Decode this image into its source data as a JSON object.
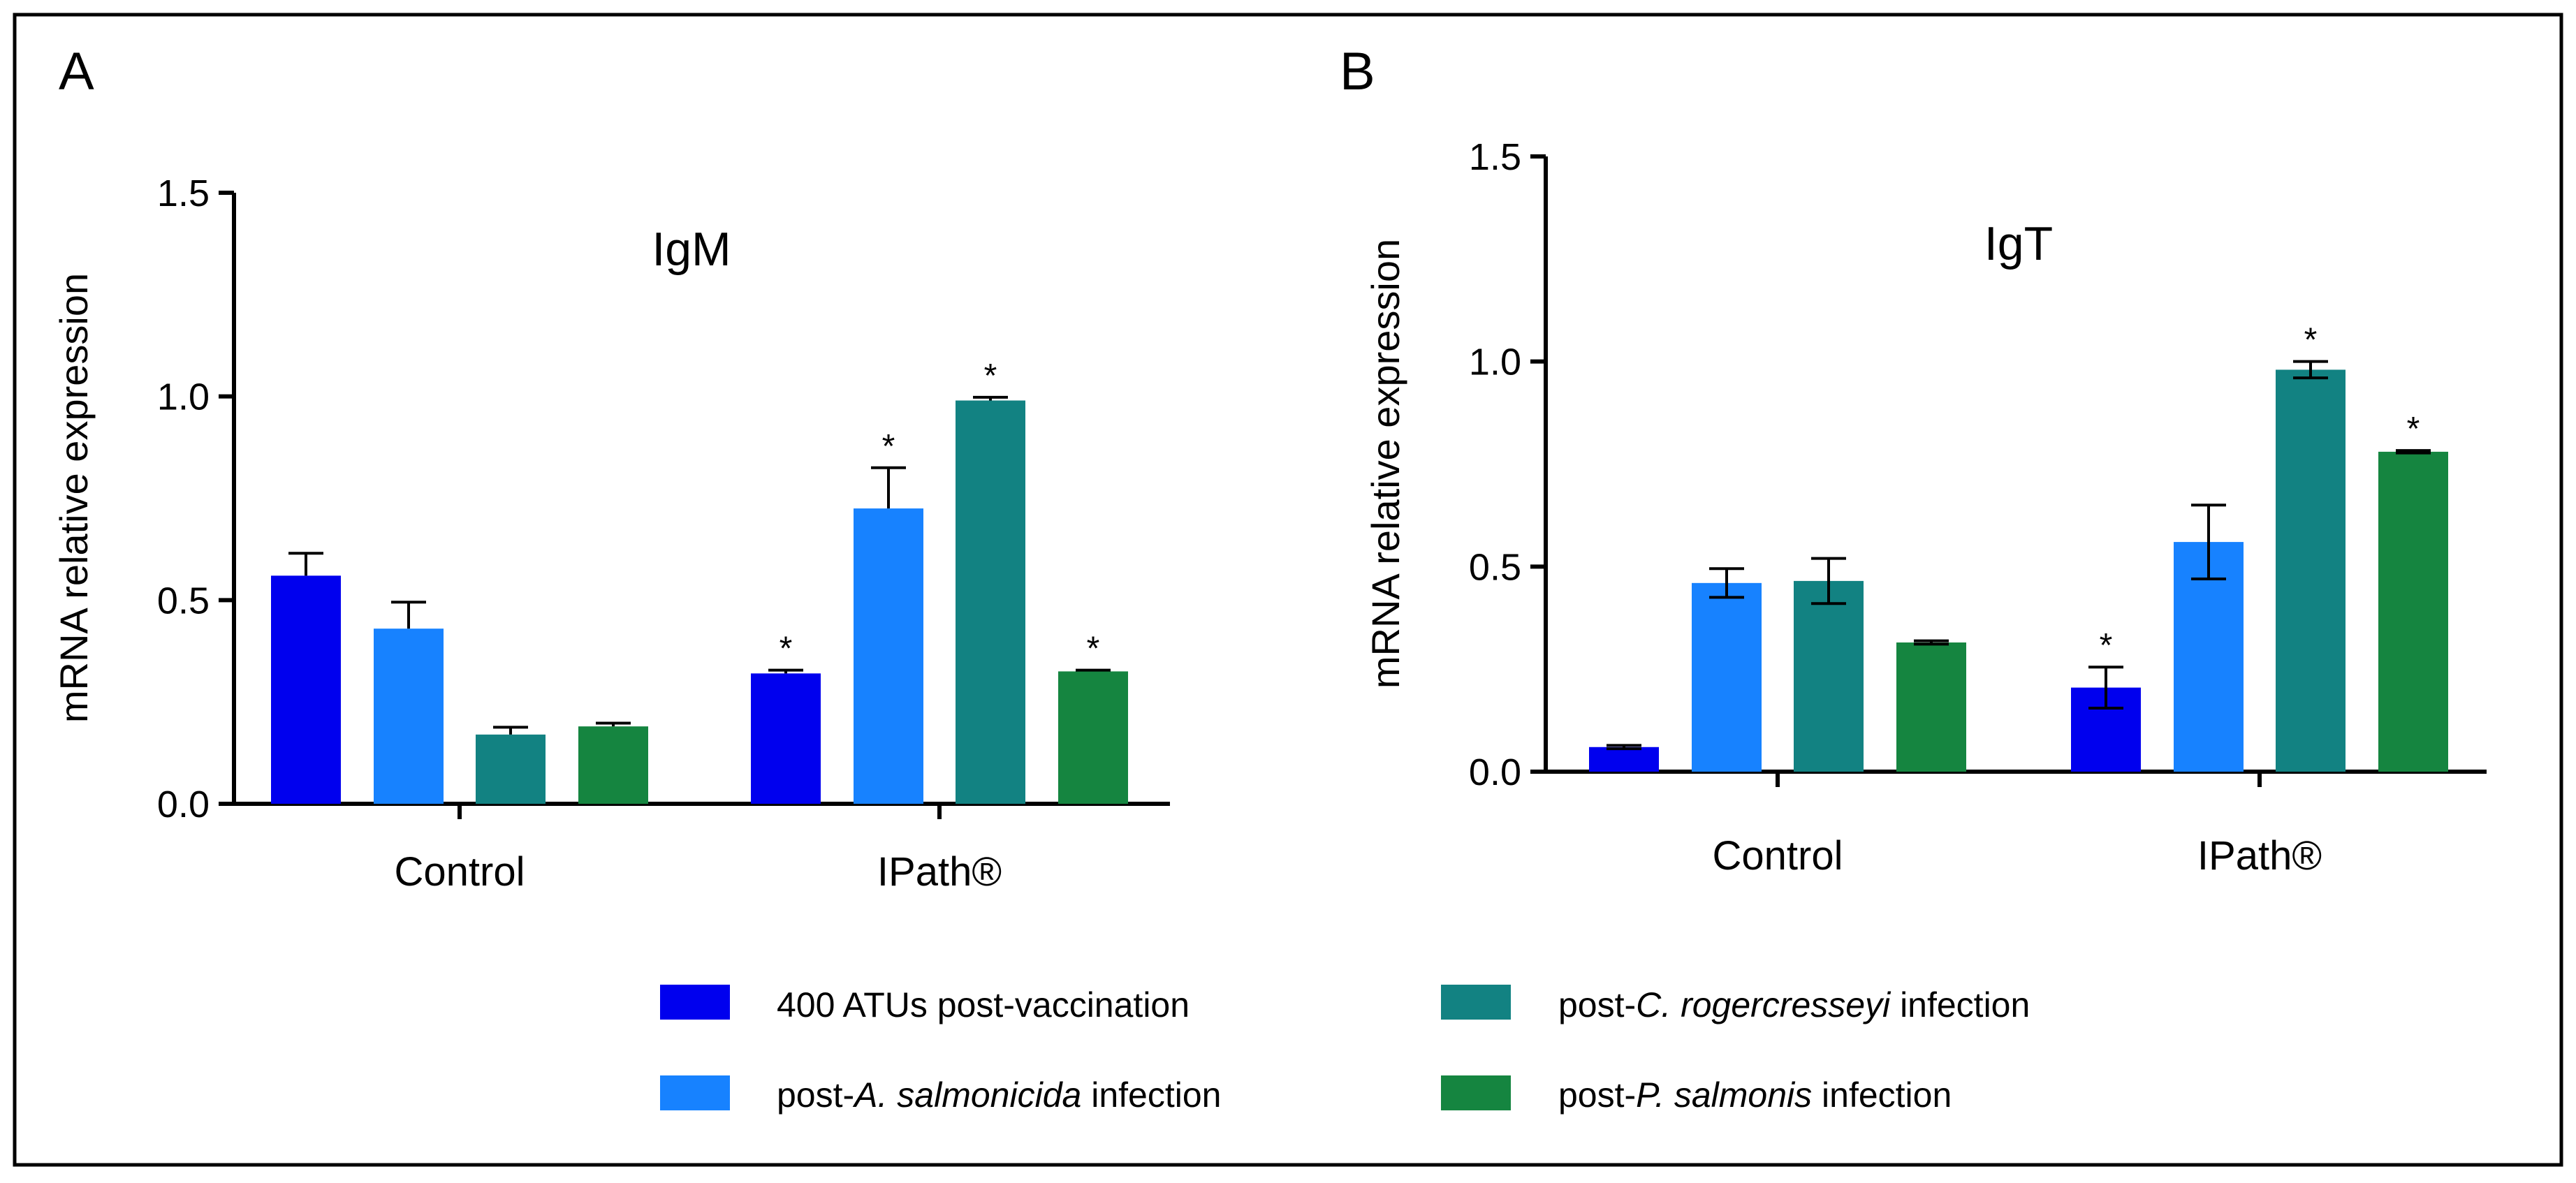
{
  "figure": {
    "panel_labels": [
      "A",
      "B"
    ]
  },
  "legend": {
    "entries": [
      {
        "parts": [
          {
            "text": "400 ATUs post-vaccination",
            "italic": false
          }
        ]
      },
      {
        "parts": [
          {
            "text": "post-",
            "italic": false
          },
          {
            "text": "C. rogercresseyi",
            "italic": true
          },
          {
            "text": " infection",
            "italic": false
          }
        ]
      },
      {
        "parts": [
          {
            "text": "post-",
            "italic": false
          },
          {
            "text": "A. salmonicida",
            "italic": true
          },
          {
            "text": " infection",
            "italic": false
          }
        ]
      },
      {
        "parts": [
          {
            "text": "post-",
            "italic": false
          },
          {
            "text": "P. salmonis",
            "italic": true
          },
          {
            "text": " infection",
            "italic": false
          }
        ]
      }
    ]
  },
  "chart_data": [
    {
      "type": "bar",
      "panel": "A",
      "title": "IgM",
      "xlabel": "",
      "ylabel": "mRNA relative expression",
      "ylim": [
        0,
        1.5
      ],
      "yticks": [
        "0.0",
        "0.5",
        "1.0",
        "1.5"
      ],
      "categories": [
        "Control",
        "IPath®"
      ],
      "series": [
        {
          "name": "400 ATUs post-vaccination",
          "color": "#0000ee",
          "values": [
            0.56,
            0.32
          ],
          "errors": [
            0.055,
            0.008
          ],
          "sig": [
            false,
            true
          ]
        },
        {
          "name": "post-A. salmonicida infection",
          "color": "#1782ff",
          "values": [
            0.43,
            0.725
          ],
          "errors": [
            0.065,
            0.1
          ],
          "sig": [
            false,
            true
          ]
        },
        {
          "name": "post-C. rogercresseyi infection",
          "color": "#128282",
          "values": [
            0.17,
            0.99
          ],
          "errors": [
            0.018,
            0.008
          ],
          "sig": [
            false,
            true
          ]
        },
        {
          "name": "post-P. salmonis infection",
          "color": "#158540",
          "values": [
            0.19,
            0.325
          ],
          "errors": [
            0.008,
            0.003
          ],
          "sig": [
            false,
            true
          ]
        }
      ],
      "error_style": "upper",
      "sig_symbol": "*"
    },
    {
      "type": "bar",
      "panel": "B",
      "title": "IgT",
      "xlabel": "",
      "ylabel": "mRNA relative expression",
      "ylim": [
        0,
        1.5
      ],
      "yticks": [
        "0.0",
        "0.5",
        "1.0",
        "1.5"
      ],
      "categories": [
        "Control",
        "IPath®"
      ],
      "series": [
        {
          "name": "400 ATUs post-vaccination",
          "color": "#0000ee",
          "values": [
            0.06,
            0.205
          ],
          "errors": [
            0.004,
            0.05
          ],
          "sig": [
            false,
            true
          ]
        },
        {
          "name": "post-A. salmonicida infection",
          "color": "#1782ff",
          "values": [
            0.46,
            0.56
          ],
          "errors": [
            0.035,
            0.09
          ],
          "sig": [
            false,
            false
          ]
        },
        {
          "name": "post-C. rogercresseyi infection",
          "color": "#128282",
          "values": [
            0.465,
            0.98
          ],
          "errors": [
            0.055,
            0.02
          ],
          "sig": [
            false,
            true
          ]
        },
        {
          "name": "post-P. salmonis infection",
          "color": "#158540",
          "values": [
            0.315,
            0.78
          ],
          "errors": [
            0.004,
            0.003
          ],
          "sig": [
            false,
            true
          ]
        }
      ],
      "error_style": "both",
      "sig_symbol": "*"
    }
  ]
}
